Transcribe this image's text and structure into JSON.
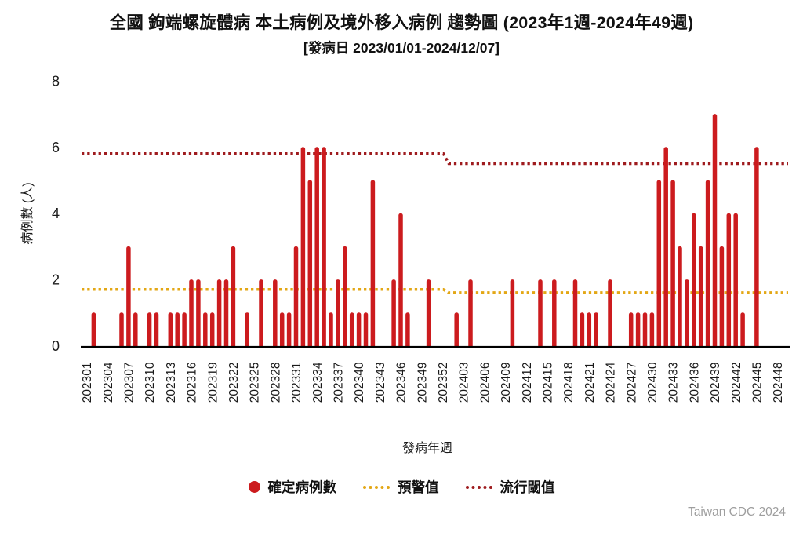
{
  "title": "全國 鉤端螺旋體病 本土病例及境外移入病例 趨勢圖 (2023年1週-2024年49週)",
  "subtitle": "[發病日 2023/01/01-2024/12/07]",
  "footer": "Taiwan CDC 2024",
  "colors": {
    "bar": "#CC1B1E",
    "warning_line": "#E3A715",
    "threshold_line": "#9E1B1E",
    "axis": "#000000",
    "text": "#1a1a1a",
    "footer_text": "#9e9e9e"
  },
  "chart_data": {
    "type": "bar",
    "title": "全國 鉤端螺旋體病 本土病例及境外移入病例 趨勢圖 (2023年1週-2024年49週)",
    "subtitle": "[發病日 2023/01/01-2024/12/07]",
    "xlabel": "發病年週",
    "ylabel": "病例數 (人)",
    "ylim": [
      0,
      8
    ],
    "yticks": [
      0,
      2,
      4,
      6,
      8
    ],
    "grid": false,
    "legend_position": "bottom",
    "x_tick_labels": [
      "202301",
      "202304",
      "202307",
      "202310",
      "202313",
      "202316",
      "202319",
      "202322",
      "202325",
      "202328",
      "202331",
      "202334",
      "202337",
      "202340",
      "202343",
      "202346",
      "202349",
      "202352",
      "202403",
      "202406",
      "202409",
      "202412",
      "202415",
      "202418",
      "202421",
      "202424",
      "202427",
      "202430",
      "202433",
      "202436",
      "202439",
      "202442",
      "202445",
      "202448"
    ],
    "weeks_per_year": {
      "2023": 52,
      "2024": 49
    },
    "series": [
      {
        "name": "確定病例數",
        "type": "bar",
        "color": "#CC1B1E",
        "values_by_year": {
          "2023": [
            0,
            1,
            0,
            0,
            0,
            1,
            3,
            1,
            0,
            1,
            1,
            0,
            1,
            1,
            1,
            2,
            2,
            1,
            1,
            2,
            2,
            3,
            0,
            1,
            0,
            2,
            0,
            2,
            1,
            1,
            3,
            6,
            5,
            6,
            6,
            1,
            2,
            3,
            1,
            1,
            1,
            5,
            0,
            0,
            2,
            4,
            1,
            0,
            0,
            2,
            0,
            0
          ],
          "2024": [
            0,
            1,
            0,
            2,
            0,
            0,
            0,
            0,
            0,
            2,
            0,
            0,
            0,
            2,
            0,
            2,
            0,
            0,
            2,
            1,
            1,
            1,
            0,
            2,
            0,
            0,
            1,
            1,
            1,
            1,
            5,
            6,
            5,
            3,
            2,
            4,
            3,
            5,
            7,
            3,
            4,
            4,
            1,
            0,
            6,
            0,
            0,
            0,
            0
          ]
        }
      },
      {
        "name": "預警值",
        "type": "dotted-line",
        "color": "#E3A715",
        "values_by_year": {
          "2023": 1.7,
          "2024": 1.6
        }
      },
      {
        "name": "流行閾值",
        "type": "dotted-line",
        "color": "#9E1B1E",
        "values_by_year": {
          "2023": 5.8,
          "2024": 5.5
        }
      }
    ]
  }
}
